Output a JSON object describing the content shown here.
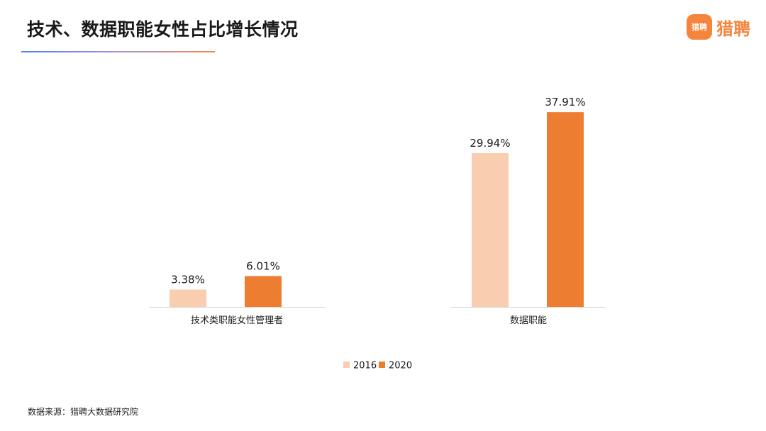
{
  "page": {
    "title": "技术、数据职能女性占比增长情况",
    "source_note": "数据来源：猎聘大数据研究院"
  },
  "brand": {
    "icon_text": "猎聘",
    "name": "猎聘",
    "color": "#f5843c"
  },
  "chart_data": {
    "type": "bar",
    "title": "",
    "xlabel": "",
    "ylabel": "",
    "categories": [
      "技术类职能女性管理者",
      "数据职能"
    ],
    "series": [
      {
        "name": "2016",
        "color": "#f8cdb0",
        "values": [
          3.38,
          29.94
        ],
        "labels": [
          "3.38%",
          "29.94%"
        ]
      },
      {
        "name": "2020",
        "color": "#ed7d31",
        "values": [
          6.01,
          37.91
        ],
        "labels": [
          "6.01%",
          "37.91%"
        ]
      }
    ],
    "ylim": [
      0,
      40
    ],
    "grid": false,
    "legend_position": "bottom",
    "axis_color": "#d9d9d9"
  }
}
